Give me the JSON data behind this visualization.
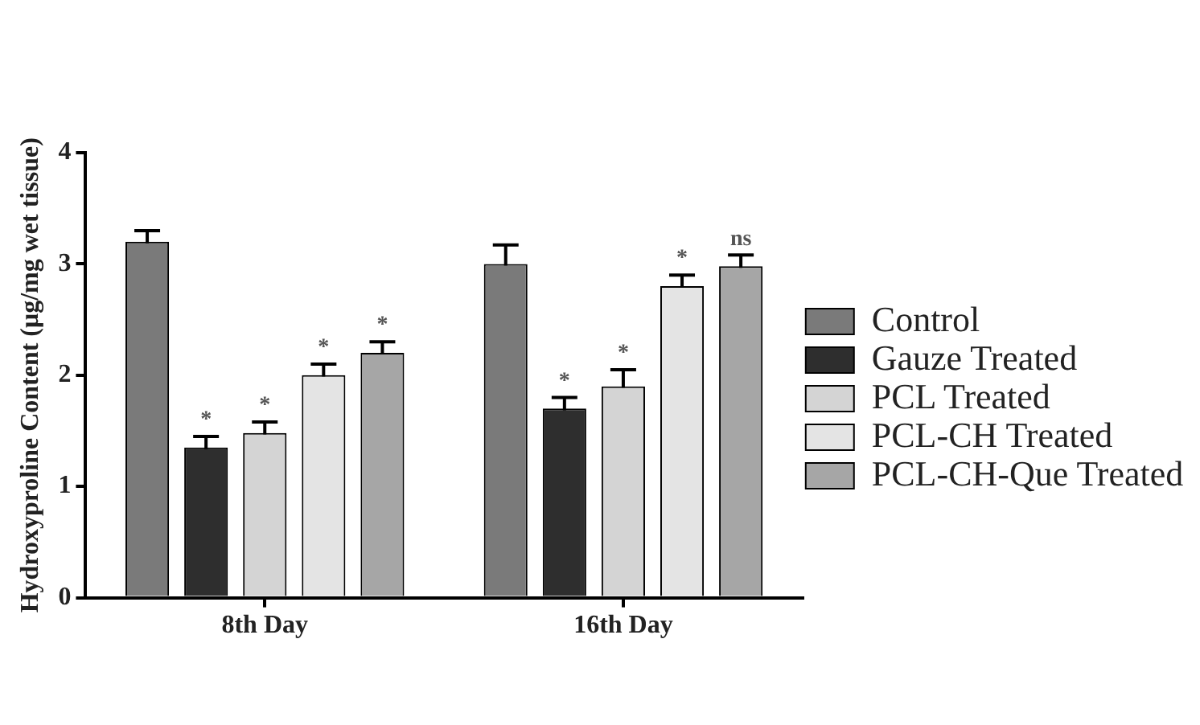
{
  "chart_data": {
    "type": "bar",
    "ylabel": "Hydroxyproline Content (μg/mg wet tissue)",
    "categories": [
      "8th Day",
      "16th Day"
    ],
    "series": [
      {
        "name": "Control",
        "color": "#7a7a7a",
        "values": [
          3.2,
          3.0
        ],
        "errors": [
          0.1,
          0.17
        ]
      },
      {
        "name": "Gauze Treated",
        "color": "#2e2e2e",
        "values": [
          1.35,
          1.7
        ],
        "errors": [
          0.1,
          0.1
        ],
        "value_labels": [
          "*",
          "*"
        ]
      },
      {
        "name": "PCL Treated",
        "color": "#d4d4d4",
        "values": [
          1.48,
          1.9
        ],
        "errors": [
          0.1,
          0.15
        ],
        "value_labels": [
          "*",
          "*"
        ]
      },
      {
        "name": "PCL-CH Treated",
        "color": "#e4e4e4",
        "values": [
          2.0,
          2.8
        ],
        "errors": [
          0.1,
          0.1
        ],
        "value_labels": [
          "*",
          "*"
        ]
      },
      {
        "name": "PCL-CH-Que Treated",
        "color": "#a6a6a6",
        "values": [
          2.2,
          2.98
        ],
        "errors": [
          0.1,
          0.1
        ],
        "value_labels": [
          "*",
          "ns"
        ]
      }
    ],
    "ylim": [
      0,
      4
    ],
    "yticks": [
      0,
      1,
      2,
      3,
      4
    ],
    "legend": "right"
  }
}
